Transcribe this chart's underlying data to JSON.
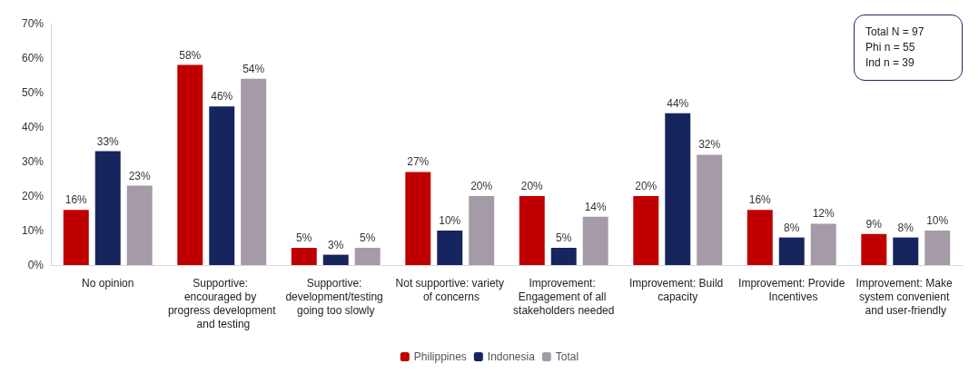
{
  "chart_data": {
    "type": "bar",
    "categories": [
      "No opinion",
      "Supportive: encouraged by progress development and testing",
      "Supportive: development/testing going too slowly",
      "Not supportive: variety of concerns",
      "Improvement: Engagement of all stakeholders needed",
      "Improvement: Build capacity",
      "Improvement: Provide Incentives",
      "Improvement: Make system convenient and user-friendly"
    ],
    "series": [
      {
        "name": "Philippines",
        "color": "#c00000",
        "values": [
          16,
          58,
          5,
          27,
          20,
          20,
          16,
          9
        ],
        "value_labels": [
          "16%",
          "58%",
          "5%",
          "27%",
          "20%",
          "20%",
          "16%",
          "9%"
        ]
      },
      {
        "name": "Indonesia",
        "color": "#17255e",
        "values": [
          33,
          46,
          3,
          10,
          5,
          44,
          8,
          8
        ],
        "value_labels": [
          "33%",
          "46%",
          "3%",
          "10%",
          "5%",
          "44%",
          "8%",
          "8%"
        ]
      },
      {
        "name": "Total",
        "color": "#a59aa8",
        "values": [
          23,
          54,
          5,
          20,
          14,
          32,
          12,
          10
        ],
        "value_labels": [
          "23%",
          "54%",
          "5%",
          "20%",
          "14%",
          "32%",
          "12%",
          "10%"
        ]
      }
    ],
    "ylim": [
      0,
      70
    ],
    "yticks": [
      {
        "value": 0,
        "label": "0%"
      },
      {
        "value": 10,
        "label": "10%"
      },
      {
        "value": 20,
        "label": "20%"
      },
      {
        "value": 30,
        "label": "30%"
      },
      {
        "value": 40,
        "label": "40%"
      },
      {
        "value": 50,
        "label": "50%"
      },
      {
        "value": 60,
        "label": "60%"
      },
      {
        "value": 70,
        "label": "70%"
      }
    ],
    "annotations": [
      "Total N = 97\nPhi n = 55\nInd n = 39"
    ],
    "grid": false,
    "legend": "bottom"
  }
}
